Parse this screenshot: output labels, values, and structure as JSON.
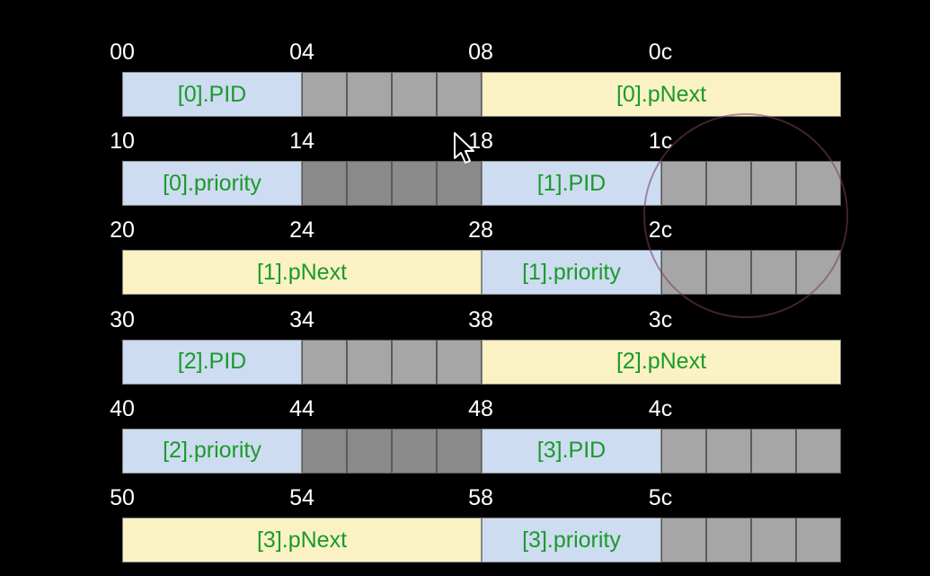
{
  "rows": [
    {
      "offsets": [
        "00",
        "04",
        "08",
        "0c"
      ],
      "cells": [
        {
          "kind": "pid",
          "label": "[0].PID",
          "span": 4
        },
        {
          "kind": "pad",
          "label": "",
          "span": 1
        },
        {
          "kind": "pad",
          "label": "",
          "span": 1
        },
        {
          "kind": "pad",
          "label": "",
          "span": 1
        },
        {
          "kind": "pad",
          "label": "",
          "span": 1
        },
        {
          "kind": "pnext",
          "label": "[0].pNext",
          "span": 8
        }
      ]
    },
    {
      "offsets": [
        "10",
        "14",
        "18",
        "1c"
      ],
      "cells": [
        {
          "kind": "pri",
          "label": "[0].priority",
          "span": 4
        },
        {
          "kind": "pad",
          "label": "",
          "span": 1,
          "dark": true
        },
        {
          "kind": "pad",
          "label": "",
          "span": 1,
          "dark": true
        },
        {
          "kind": "pad",
          "label": "",
          "span": 1,
          "dark": true
        },
        {
          "kind": "pad",
          "label": "",
          "span": 1,
          "dark": true
        },
        {
          "kind": "pid",
          "label": "[1].PID",
          "span": 4
        },
        {
          "kind": "pad",
          "label": "",
          "span": 1
        },
        {
          "kind": "pad",
          "label": "",
          "span": 1
        },
        {
          "kind": "pad",
          "label": "",
          "span": 1
        },
        {
          "kind": "pad",
          "label": "",
          "span": 1
        }
      ]
    },
    {
      "offsets": [
        "20",
        "24",
        "28",
        "2c"
      ],
      "cells": [
        {
          "kind": "pnext",
          "label": "[1].pNext",
          "span": 8
        },
        {
          "kind": "pri",
          "label": "[1].priority",
          "span": 4
        },
        {
          "kind": "pad",
          "label": "",
          "span": 1
        },
        {
          "kind": "pad",
          "label": "",
          "span": 1
        },
        {
          "kind": "pad",
          "label": "",
          "span": 1
        },
        {
          "kind": "pad",
          "label": "",
          "span": 1
        }
      ]
    },
    {
      "offsets": [
        "30",
        "34",
        "38",
        "3c"
      ],
      "cells": [
        {
          "kind": "pid",
          "label": "[2].PID",
          "span": 4
        },
        {
          "kind": "pad",
          "label": "",
          "span": 1
        },
        {
          "kind": "pad",
          "label": "",
          "span": 1
        },
        {
          "kind": "pad",
          "label": "",
          "span": 1
        },
        {
          "kind": "pad",
          "label": "",
          "span": 1
        },
        {
          "kind": "pnext",
          "label": "[2].pNext",
          "span": 8
        }
      ]
    },
    {
      "offsets": [
        "40",
        "44",
        "48",
        "4c"
      ],
      "cells": [
        {
          "kind": "pri",
          "label": "[2].priority",
          "span": 4
        },
        {
          "kind": "pad",
          "label": "",
          "span": 1,
          "dark": true
        },
        {
          "kind": "pad",
          "label": "",
          "span": 1,
          "dark": true
        },
        {
          "kind": "pad",
          "label": "",
          "span": 1,
          "dark": true
        },
        {
          "kind": "pad",
          "label": "",
          "span": 1,
          "dark": true
        },
        {
          "kind": "pid",
          "label": "[3].PID",
          "span": 4
        },
        {
          "kind": "pad",
          "label": "",
          "span": 1
        },
        {
          "kind": "pad",
          "label": "",
          "span": 1
        },
        {
          "kind": "pad",
          "label": "",
          "span": 1
        },
        {
          "kind": "pad",
          "label": "",
          "span": 1
        }
      ]
    },
    {
      "offsets": [
        "50",
        "54",
        "58",
        "5c"
      ],
      "cells": [
        {
          "kind": "pnext",
          "label": "[3].pNext",
          "span": 8
        },
        {
          "kind": "pri",
          "label": "[3].priority",
          "span": 4
        },
        {
          "kind": "pad",
          "label": "",
          "span": 1
        },
        {
          "kind": "pad",
          "label": "",
          "span": 1
        },
        {
          "kind": "pad",
          "label": "",
          "span": 1
        },
        {
          "kind": "pad",
          "label": "",
          "span": 1
        }
      ]
    }
  ],
  "colors": {
    "background": "#000000",
    "pid_fill": "#cddcf1",
    "pnext_fill": "#faf2c4",
    "padding_fill": "#a6a6a6",
    "label_text": "#1a9a2a",
    "offset_text": "#ffffff"
  }
}
